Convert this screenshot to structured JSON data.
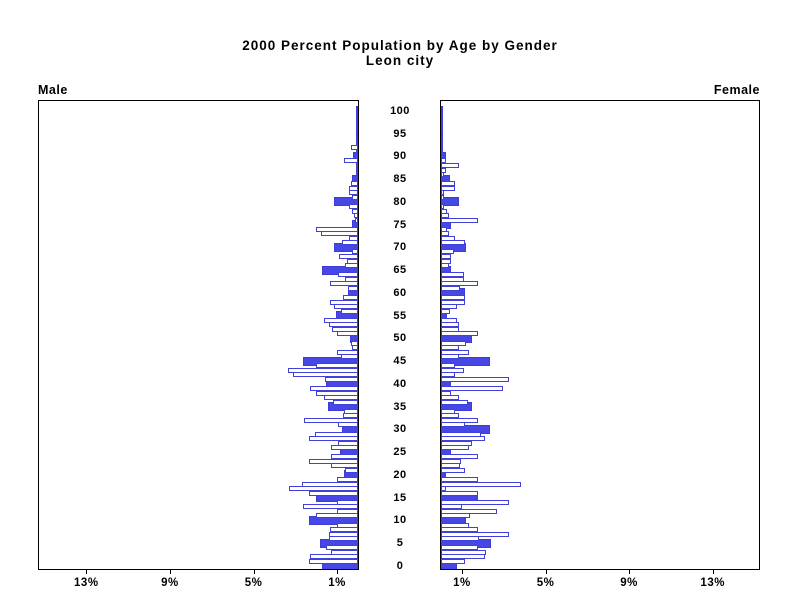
{
  "title": {
    "line1": "2000 Percent Population by Age by Gender",
    "line2": "Leon city"
  },
  "panels": {
    "left_header": "Male",
    "right_header": "Female"
  },
  "chart_data": {
    "type": "bar",
    "subtype": "population-pyramid",
    "title": "2000 Percent Population by Age by Gender",
    "subtitle": "Leon city",
    "orientation": "horizontal",
    "age_axis": {
      "min": 0,
      "max": 100,
      "tick_interval": 5,
      "tick_labels": [
        "0",
        "5",
        "10",
        "15",
        "20",
        "25",
        "30",
        "35",
        "40",
        "45",
        "50",
        "55",
        "60",
        "65",
        "70",
        "75",
        "80",
        "85",
        "90",
        "95",
        "100"
      ]
    },
    "percent_axis": {
      "tick_values": [
        1,
        5,
        9,
        13
      ],
      "left_tick_labels": [
        "13%",
        "9%",
        "5%",
        "1%"
      ],
      "right_tick_labels": [
        "1%",
        "5%",
        "9%",
        "13%"
      ],
      "max_displayed_percent": 15.3,
      "grid": false
    },
    "emphasis_rule": "bars for ages divisible by 5 are filled blue; other ages are white with blue outline",
    "colors": {
      "emph_bar_fill": "#4747e6",
      "bar_outline": "#4040dd",
      "axis": "#000000",
      "background": "#ffffff"
    },
    "series": [
      {
        "name": "Male",
        "side": "left",
        "ages": "0-100 single years, index = age",
        "values": [
          1.7,
          2.35,
          2.3,
          1.3,
          1.55,
          1.8,
          1.4,
          1.4,
          1.35,
          1.0,
          2.35,
          2.0,
          1.0,
          2.65,
          1.0,
          2.0,
          2.35,
          3.3,
          2.7,
          1.0,
          0.65,
          0.6,
          1.3,
          2.35,
          1.3,
          0.85,
          1.3,
          0.95,
          2.35,
          2.05,
          0.75,
          0.95,
          2.6,
          0.7,
          0.65,
          1.45,
          1.2,
          1.65,
          2.0,
          2.3,
          1.55,
          1.6,
          3.1,
          3.35,
          2.0,
          2.65,
          0.8,
          1.0,
          0.3,
          0.35,
          0.4,
          1.0,
          1.25,
          1.4,
          1.65,
          1.05,
          0.8,
          1.15,
          1.35,
          0.7,
          0.5,
          0.5,
          1.35,
          0.6,
          0.95,
          1.7,
          0.6,
          0.55,
          0.9,
          0.3,
          1.15,
          0.75,
          0.45,
          1.75,
          2.0,
          0.3,
          0.15,
          0.2,
          0.3,
          0.45,
          1.15,
          0.3,
          0.45,
          0.45,
          0.35,
          0.3,
          0.1,
          0.1,
          0.1,
          0.65,
          0.25,
          0.1,
          0.35,
          0.05,
          0.05,
          0.05,
          0.03,
          0.03,
          0.03,
          0.02,
          0.02
        ]
      },
      {
        "name": "Female",
        "side": "right",
        "ages": "0-100 single years, index = age",
        "values": [
          0.75,
          1.15,
          2.1,
          2.15,
          1.75,
          2.4,
          1.8,
          3.25,
          1.75,
          1.35,
          1.2,
          1.4,
          2.7,
          1.0,
          3.25,
          1.75,
          1.75,
          0.25,
          3.85,
          1.75,
          0.25,
          1.15,
          0.9,
          0.95,
          1.75,
          0.5,
          1.35,
          1.5,
          2.1,
          1.9,
          2.35,
          1.15,
          1.75,
          0.85,
          0.65,
          1.5,
          1.3,
          0.85,
          0.5,
          2.95,
          0.5,
          3.25,
          0.65,
          1.1,
          0.65,
          2.35,
          0.85,
          1.35,
          0.85,
          1.2,
          1.5,
          1.75,
          0.85,
          0.85,
          0.75,
          0.3,
          0.45,
          0.75,
          1.15,
          1.15,
          1.15,
          0.9,
          1.75,
          1.1,
          1.1,
          0.5,
          0.4,
          0.5,
          0.5,
          0.6,
          1.2,
          1.15,
          0.65,
          0.4,
          0.3,
          0.5,
          1.75,
          0.4,
          0.3,
          0.15,
          0.85,
          0.15,
          0.15,
          0.65,
          0.65,
          0.45,
          0.15,
          0.25,
          0.85,
          0.25,
          0.25,
          0.1,
          0.1,
          0.05,
          0.05,
          0.05,
          0.03,
          0.03,
          0.02,
          0.02,
          0.02
        ]
      }
    ]
  }
}
